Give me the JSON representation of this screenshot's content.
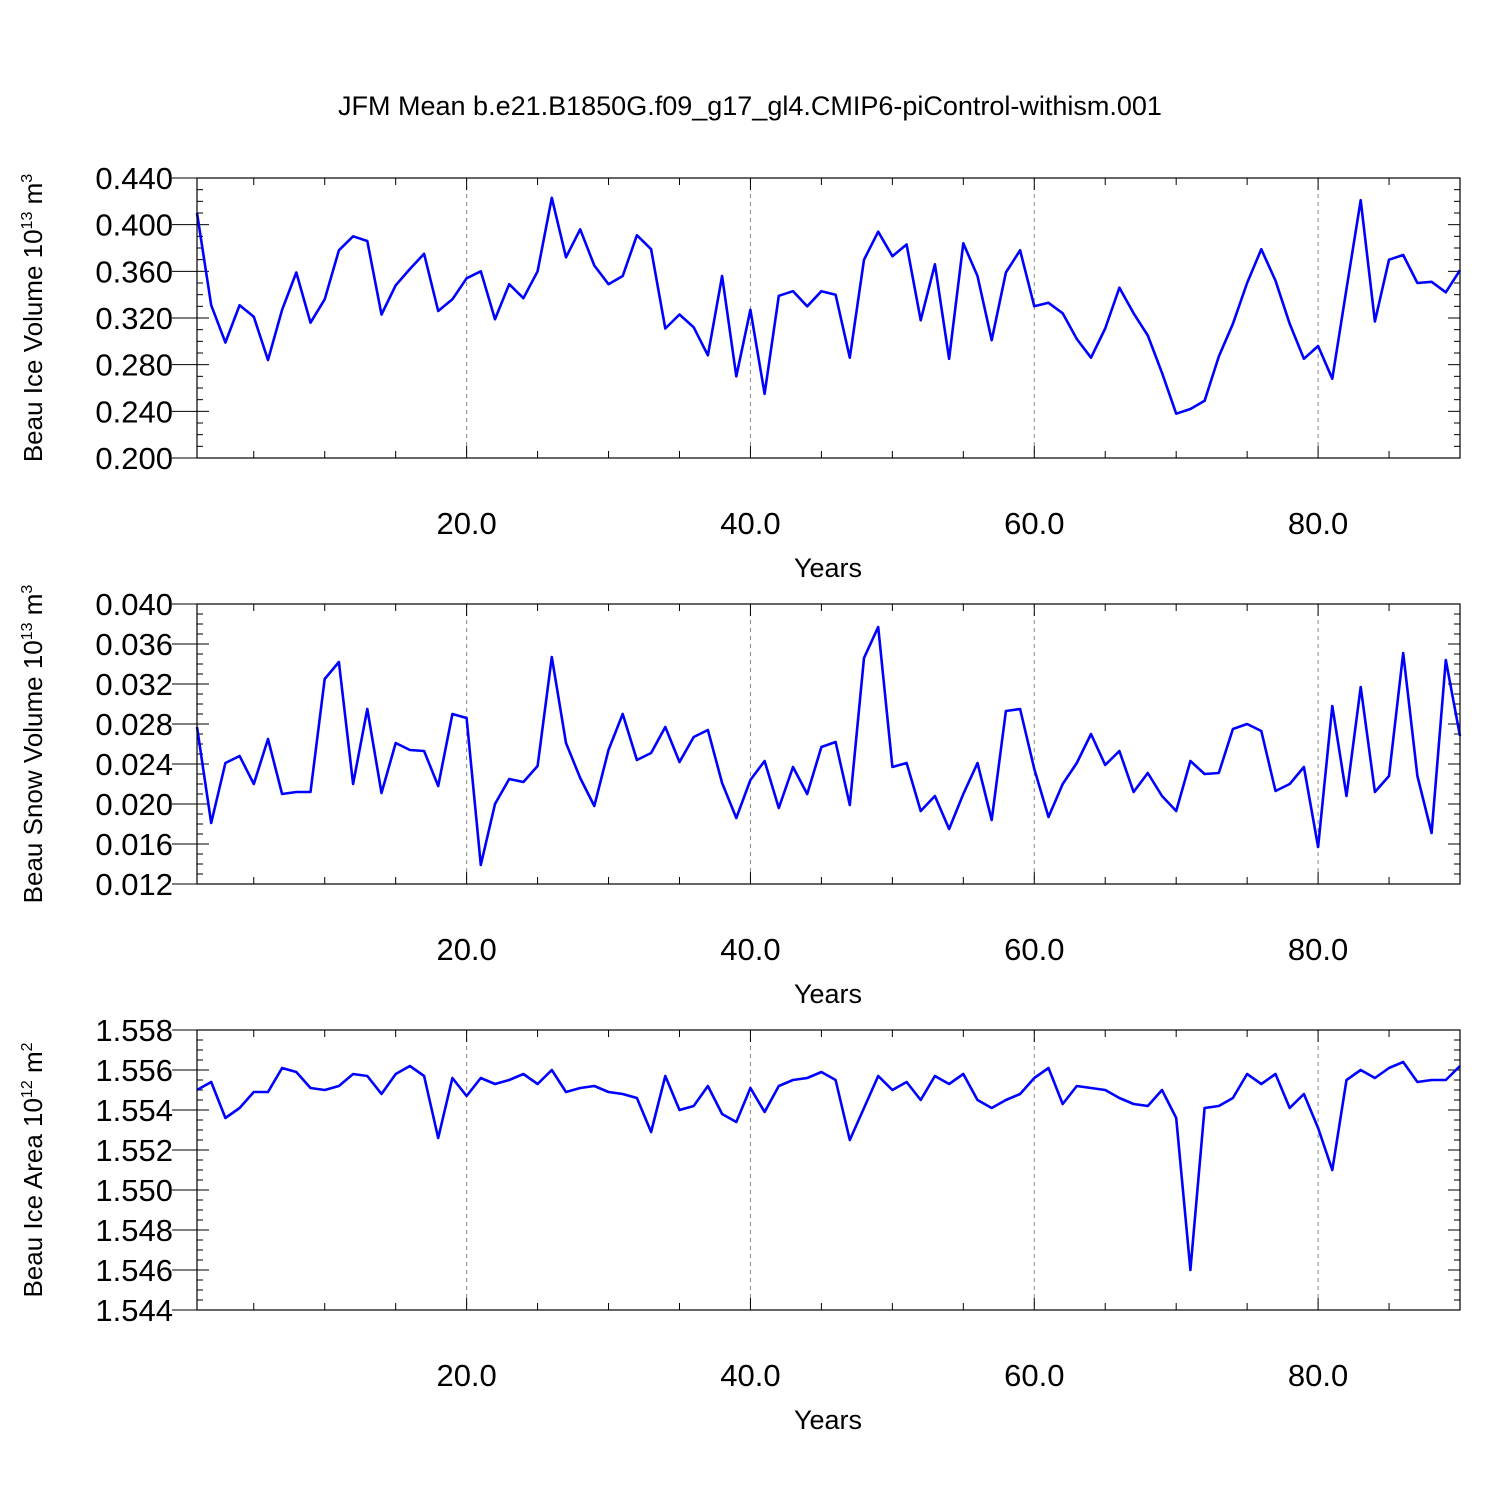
{
  "title": "JFM Mean b.e21.B1850G.f09_g17_gl4.CMIP6-piControl-withism.001",
  "line_color": "#0000ff",
  "chart_data": [
    {
      "type": "line",
      "xlabel": "Years",
      "ylabel": "Beau Ice Volume 10",
      "ylabel_sup": "13",
      "ylabel_unit": " m",
      "ylabel_unit_sup": "3",
      "xlim": [
        1,
        90
      ],
      "ylim": [
        0.2,
        0.44
      ],
      "yticks": [
        "0.200",
        "0.240",
        "0.280",
        "0.320",
        "0.360",
        "0.400",
        "0.440"
      ],
      "xticks": [
        "20.0",
        "40.0",
        "60.0",
        "80.0"
      ],
      "grid": "vertical dashed at x ticks",
      "series": [
        {
          "values": [
            0.41,
            0.331,
            0.299,
            0.331,
            0.321,
            0.284,
            0.327,
            0.359,
            0.316,
            0.336,
            0.378,
            0.39,
            0.386,
            0.323,
            0.348,
            0.362,
            0.375,
            0.326,
            0.336,
            0.354,
            0.36,
            0.319,
            0.349,
            0.337,
            0.36,
            0.423,
            0.372,
            0.396,
            0.365,
            0.349,
            0.356,
            0.391,
            0.379,
            0.311,
            0.323,
            0.312,
            0.288,
            0.356,
            0.27,
            0.327,
            0.255,
            0.339,
            0.343,
            0.33,
            0.343,
            0.34,
            0.286,
            0.37,
            0.394,
            0.373,
            0.383,
            0.318,
            0.366,
            0.285,
            0.384,
            0.356,
            0.301,
            0.359,
            0.378,
            0.33,
            0.333,
            0.324,
            0.302,
            0.286,
            0.311,
            0.346,
            0.324,
            0.305,
            0.273,
            0.238,
            0.242,
            0.249,
            0.287,
            0.315,
            0.35,
            0.379,
            0.352,
            0.315,
            0.285,
            0.296,
            0.268,
            0.345,
            0.421,
            0.317,
            0.37,
            0.374,
            0.35,
            0.351,
            0.342,
            0.361
          ]
        }
      ]
    },
    {
      "type": "line",
      "xlabel": "Years",
      "ylabel": "Beau Snow Volume 10",
      "ylabel_sup": "13",
      "ylabel_unit": " m",
      "ylabel_unit_sup": "3",
      "xlim": [
        1,
        90
      ],
      "ylim": [
        0.012,
        0.04
      ],
      "yticks": [
        "0.012",
        "0.016",
        "0.020",
        "0.024",
        "0.028",
        "0.032",
        "0.036",
        "0.040"
      ],
      "xticks": [
        "20.0",
        "40.0",
        "60.0",
        "80.0"
      ],
      "grid": "vertical dashed at x ticks",
      "series": [
        {
          "values": [
            0.0277,
            0.0181,
            0.0241,
            0.0248,
            0.022,
            0.0265,
            0.021,
            0.0212,
            0.0212,
            0.0325,
            0.0342,
            0.022,
            0.0295,
            0.0211,
            0.0261,
            0.0254,
            0.0253,
            0.0218,
            0.029,
            0.0286,
            0.0139,
            0.02,
            0.0225,
            0.0222,
            0.0238,
            0.0347,
            0.0261,
            0.0226,
            0.0198,
            0.0254,
            0.029,
            0.0244,
            0.0251,
            0.0277,
            0.0242,
            0.0267,
            0.0274,
            0.0221,
            0.0186,
            0.0224,
            0.0243,
            0.0196,
            0.0237,
            0.021,
            0.0257,
            0.0262,
            0.0199,
            0.0346,
            0.0377,
            0.0237,
            0.0241,
            0.0193,
            0.0208,
            0.0175,
            0.021,
            0.0241,
            0.0184,
            0.0293,
            0.0295,
            0.0235,
            0.0187,
            0.022,
            0.0241,
            0.027,
            0.0239,
            0.0253,
            0.0212,
            0.0231,
            0.0208,
            0.0193,
            0.0243,
            0.023,
            0.0231,
            0.0275,
            0.028,
            0.0273,
            0.0213,
            0.022,
            0.0237,
            0.0157,
            0.0298,
            0.0208,
            0.0317,
            0.0212,
            0.0228,
            0.0351,
            0.0228,
            0.0171,
            0.0344,
            0.0268
          ]
        }
      ]
    },
    {
      "type": "line",
      "xlabel": "Years",
      "ylabel": "Beau Ice Area 10",
      "ylabel_sup": "12",
      "ylabel_unit": " m",
      "ylabel_unit_sup": "2",
      "xlim": [
        1,
        90
      ],
      "ylim": [
        1.544,
        1.558
      ],
      "yticks": [
        "1.544",
        "1.546",
        "1.548",
        "1.550",
        "1.552",
        "1.554",
        "1.556",
        "1.558"
      ],
      "xticks": [
        "20.0",
        "40.0",
        "60.0",
        "80.0"
      ],
      "grid": "vertical dashed at x ticks",
      "series": [
        {
          "values": [
            1.555,
            1.5554,
            1.5536,
            1.5541,
            1.5549,
            1.5549,
            1.5561,
            1.5559,
            1.5551,
            1.555,
            1.5552,
            1.5558,
            1.5557,
            1.5548,
            1.5558,
            1.5562,
            1.5557,
            1.5526,
            1.5556,
            1.5547,
            1.5556,
            1.5553,
            1.5555,
            1.5558,
            1.5553,
            1.556,
            1.5549,
            1.5551,
            1.5552,
            1.5549,
            1.5548,
            1.5546,
            1.5529,
            1.5557,
            1.554,
            1.5542,
            1.5552,
            1.5538,
            1.5534,
            1.5551,
            1.5539,
            1.5552,
            1.5555,
            1.5556,
            1.5559,
            1.5555,
            1.5525,
            1.5541,
            1.5557,
            1.555,
            1.5554,
            1.5545,
            1.5557,
            1.5553,
            1.5558,
            1.5545,
            1.5541,
            1.5545,
            1.5548,
            1.5556,
            1.5561,
            1.5543,
            1.5552,
            1.5551,
            1.555,
            1.5546,
            1.5543,
            1.5542,
            1.555,
            1.5536,
            1.546,
            1.5541,
            1.5542,
            1.5546,
            1.5558,
            1.5553,
            1.5558,
            1.5541,
            1.5548,
            1.5531,
            1.551,
            1.5555,
            1.556,
            1.5556,
            1.5561,
            1.5564,
            1.5554,
            1.5555,
            1.5555,
            1.5562
          ]
        }
      ]
    }
  ]
}
